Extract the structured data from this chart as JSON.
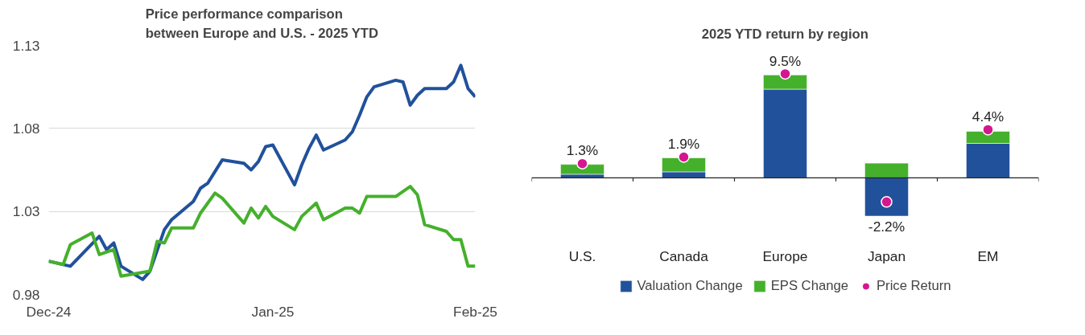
{
  "chart_data": [
    {
      "type": "line",
      "title": "Price performance comparison\nbetween Europe and U.S. - 2025 YTD",
      "xlim": [
        "2024-12-31",
        "2025-02-28"
      ],
      "xticks": [
        {
          "value": "2024-12-31",
          "label": "Dec-24"
        },
        {
          "value": "2025-01-31",
          "label": "Jan-25"
        },
        {
          "value": "2025-02-28",
          "label": "Feb-25"
        }
      ],
      "ylim": [
        0.98,
        1.13
      ],
      "yticks": [
        {
          "value": 0.98,
          "label": "0.98"
        },
        {
          "value": 1.03,
          "label": "1.03"
        },
        {
          "value": 1.08,
          "label": "1.08"
        },
        {
          "value": 1.13,
          "label": "1.13"
        }
      ],
      "grid": "y",
      "legend": false,
      "series": [
        {
          "color": "#21519b",
          "x": [
            "2024-12-31",
            "2025-01-03",
            "2025-01-07",
            "2025-01-08",
            "2025-01-09",
            "2025-01-10",
            "2025-01-13",
            "2025-01-14",
            "2025-01-16",
            "2025-01-17",
            "2025-01-20",
            "2025-01-21",
            "2025-01-22",
            "2025-01-24",
            "2025-01-27",
            "2025-01-28",
            "2025-01-29",
            "2025-01-30",
            "2025-01-31",
            "2025-02-03",
            "2025-02-04",
            "2025-02-05",
            "2025-02-06",
            "2025-02-07",
            "2025-02-10",
            "2025-02-11",
            "2025-02-12",
            "2025-02-13",
            "2025-02-14",
            "2025-02-17",
            "2025-02-18",
            "2025-02-19",
            "2025-02-20",
            "2025-02-21",
            "2025-02-24",
            "2025-02-25",
            "2025-02-26",
            "2025-02-27",
            "2025-02-28"
          ],
          "values": [
            1.0,
            0.997,
            1.015,
            1.007,
            1.011,
            0.997,
            0.989,
            0.994,
            1.019,
            1.025,
            1.036,
            1.044,
            1.047,
            1.061,
            1.059,
            1.055,
            1.06,
            1.069,
            1.07,
            1.046,
            1.058,
            1.068,
            1.076,
            1.067,
            1.073,
            1.078,
            1.088,
            1.099,
            1.105,
            1.109,
            1.108,
            1.094,
            1.1,
            1.104,
            1.104,
            1.108,
            1.118,
            1.104,
            1.099
          ]
        },
        {
          "color": "#45b02c",
          "x": [
            "2024-12-31",
            "2025-01-02",
            "2025-01-03",
            "2025-01-06",
            "2025-01-07",
            "2025-01-09",
            "2025-01-10",
            "2025-01-14",
            "2025-01-15",
            "2025-01-16",
            "2025-01-17",
            "2025-01-20",
            "2025-01-21",
            "2025-01-23",
            "2025-01-24",
            "2025-01-27",
            "2025-01-28",
            "2025-01-29",
            "2025-01-30",
            "2025-01-31",
            "2025-02-03",
            "2025-02-04",
            "2025-02-06",
            "2025-02-07",
            "2025-02-10",
            "2025-02-11",
            "2025-02-12",
            "2025-02-13",
            "2025-02-17",
            "2025-02-19",
            "2025-02-20",
            "2025-02-21",
            "2025-02-24",
            "2025-02-25",
            "2025-02-26",
            "2025-02-27",
            "2025-02-28"
          ],
          "values": [
            1.0,
            0.998,
            1.01,
            1.017,
            1.004,
            1.007,
            0.991,
            0.994,
            1.012,
            1.011,
            1.02,
            1.02,
            1.029,
            1.041,
            1.038,
            1.023,
            1.032,
            1.026,
            1.033,
            1.027,
            1.019,
            1.027,
            1.035,
            1.025,
            1.032,
            1.032,
            1.029,
            1.039,
            1.039,
            1.045,
            1.04,
            1.022,
            1.018,
            1.013,
            1.013,
            0.997,
            0.997
          ]
        }
      ]
    },
    {
      "type": "bar",
      "title": "2025 YTD return by region",
      "stacked": true,
      "grid": false,
      "legend": "bottom",
      "categories": [
        "U.S.",
        "Canada",
        "Europe",
        "Japan",
        "EM"
      ],
      "series": [
        {
          "name": "Valuation Change",
          "color": "#21519b",
          "values": [
            0.33,
            0.55,
            8.1,
            -3.5,
            3.15
          ]
        },
        {
          "name": "EPS Change",
          "color": "#45b02c",
          "values": [
            0.9,
            1.28,
            1.3,
            1.34,
            1.1
          ]
        },
        {
          "name": "Price Return",
          "type": "scatter",
          "marker": "circle",
          "color": "#d4178f",
          "values": [
            1.3,
            1.9,
            9.5,
            -2.2,
            4.4
          ],
          "value_labels": [
            "1.3%",
            "1.9%",
            "9.5%",
            "-2.2%",
            "4.4%"
          ]
        }
      ]
    }
  ]
}
